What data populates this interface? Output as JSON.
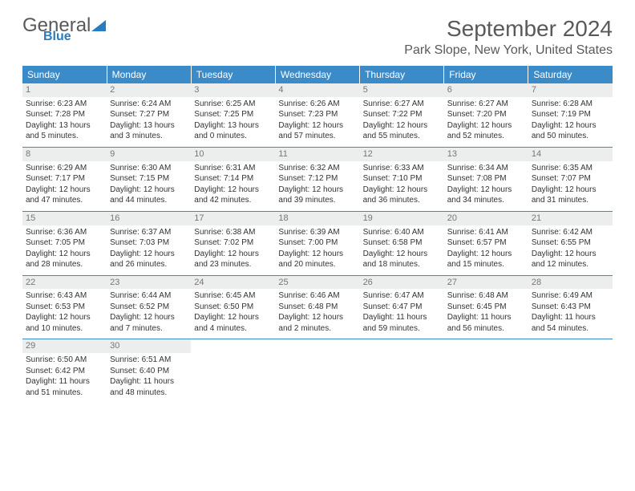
{
  "logo": {
    "text1": "General",
    "text2": "Blue"
  },
  "title": "September 2024",
  "location": "Park Slope, New York, United States",
  "colors": {
    "header_bg": "#3b8bc9",
    "header_text": "#ffffff",
    "logo_gray": "#58595b",
    "logo_blue": "#2b7bbf",
    "daynum_bg": "#eceded",
    "daynum_text": "#777777",
    "body_text": "#333333",
    "divider": "#3b8bc9"
  },
  "typography": {
    "title_fontsize": 28,
    "location_fontsize": 16,
    "header_fontsize": 12,
    "cell_fontsize": 10
  },
  "day_names": [
    "Sunday",
    "Monday",
    "Tuesday",
    "Wednesday",
    "Thursday",
    "Friday",
    "Saturday"
  ],
  "weeks": [
    [
      {
        "n": "1",
        "sr": "Sunrise: 6:23 AM",
        "ss": "Sunset: 7:28 PM",
        "d1": "Daylight: 13 hours",
        "d2": "and 5 minutes."
      },
      {
        "n": "2",
        "sr": "Sunrise: 6:24 AM",
        "ss": "Sunset: 7:27 PM",
        "d1": "Daylight: 13 hours",
        "d2": "and 3 minutes."
      },
      {
        "n": "3",
        "sr": "Sunrise: 6:25 AM",
        "ss": "Sunset: 7:25 PM",
        "d1": "Daylight: 13 hours",
        "d2": "and 0 minutes."
      },
      {
        "n": "4",
        "sr": "Sunrise: 6:26 AM",
        "ss": "Sunset: 7:23 PM",
        "d1": "Daylight: 12 hours",
        "d2": "and 57 minutes."
      },
      {
        "n": "5",
        "sr": "Sunrise: 6:27 AM",
        "ss": "Sunset: 7:22 PM",
        "d1": "Daylight: 12 hours",
        "d2": "and 55 minutes."
      },
      {
        "n": "6",
        "sr": "Sunrise: 6:27 AM",
        "ss": "Sunset: 7:20 PM",
        "d1": "Daylight: 12 hours",
        "d2": "and 52 minutes."
      },
      {
        "n": "7",
        "sr": "Sunrise: 6:28 AM",
        "ss": "Sunset: 7:19 PM",
        "d1": "Daylight: 12 hours",
        "d2": "and 50 minutes."
      }
    ],
    [
      {
        "n": "8",
        "sr": "Sunrise: 6:29 AM",
        "ss": "Sunset: 7:17 PM",
        "d1": "Daylight: 12 hours",
        "d2": "and 47 minutes."
      },
      {
        "n": "9",
        "sr": "Sunrise: 6:30 AM",
        "ss": "Sunset: 7:15 PM",
        "d1": "Daylight: 12 hours",
        "d2": "and 44 minutes."
      },
      {
        "n": "10",
        "sr": "Sunrise: 6:31 AM",
        "ss": "Sunset: 7:14 PM",
        "d1": "Daylight: 12 hours",
        "d2": "and 42 minutes."
      },
      {
        "n": "11",
        "sr": "Sunrise: 6:32 AM",
        "ss": "Sunset: 7:12 PM",
        "d1": "Daylight: 12 hours",
        "d2": "and 39 minutes."
      },
      {
        "n": "12",
        "sr": "Sunrise: 6:33 AM",
        "ss": "Sunset: 7:10 PM",
        "d1": "Daylight: 12 hours",
        "d2": "and 36 minutes."
      },
      {
        "n": "13",
        "sr": "Sunrise: 6:34 AM",
        "ss": "Sunset: 7:08 PM",
        "d1": "Daylight: 12 hours",
        "d2": "and 34 minutes."
      },
      {
        "n": "14",
        "sr": "Sunrise: 6:35 AM",
        "ss": "Sunset: 7:07 PM",
        "d1": "Daylight: 12 hours",
        "d2": "and 31 minutes."
      }
    ],
    [
      {
        "n": "15",
        "sr": "Sunrise: 6:36 AM",
        "ss": "Sunset: 7:05 PM",
        "d1": "Daylight: 12 hours",
        "d2": "and 28 minutes."
      },
      {
        "n": "16",
        "sr": "Sunrise: 6:37 AM",
        "ss": "Sunset: 7:03 PM",
        "d1": "Daylight: 12 hours",
        "d2": "and 26 minutes."
      },
      {
        "n": "17",
        "sr": "Sunrise: 6:38 AM",
        "ss": "Sunset: 7:02 PM",
        "d1": "Daylight: 12 hours",
        "d2": "and 23 minutes."
      },
      {
        "n": "18",
        "sr": "Sunrise: 6:39 AM",
        "ss": "Sunset: 7:00 PM",
        "d1": "Daylight: 12 hours",
        "d2": "and 20 minutes."
      },
      {
        "n": "19",
        "sr": "Sunrise: 6:40 AM",
        "ss": "Sunset: 6:58 PM",
        "d1": "Daylight: 12 hours",
        "d2": "and 18 minutes."
      },
      {
        "n": "20",
        "sr": "Sunrise: 6:41 AM",
        "ss": "Sunset: 6:57 PM",
        "d1": "Daylight: 12 hours",
        "d2": "and 15 minutes."
      },
      {
        "n": "21",
        "sr": "Sunrise: 6:42 AM",
        "ss": "Sunset: 6:55 PM",
        "d1": "Daylight: 12 hours",
        "d2": "and 12 minutes."
      }
    ],
    [
      {
        "n": "22",
        "sr": "Sunrise: 6:43 AM",
        "ss": "Sunset: 6:53 PM",
        "d1": "Daylight: 12 hours",
        "d2": "and 10 minutes."
      },
      {
        "n": "23",
        "sr": "Sunrise: 6:44 AM",
        "ss": "Sunset: 6:52 PM",
        "d1": "Daylight: 12 hours",
        "d2": "and 7 minutes."
      },
      {
        "n": "24",
        "sr": "Sunrise: 6:45 AM",
        "ss": "Sunset: 6:50 PM",
        "d1": "Daylight: 12 hours",
        "d2": "and 4 minutes."
      },
      {
        "n": "25",
        "sr": "Sunrise: 6:46 AM",
        "ss": "Sunset: 6:48 PM",
        "d1": "Daylight: 12 hours",
        "d2": "and 2 minutes."
      },
      {
        "n": "26",
        "sr": "Sunrise: 6:47 AM",
        "ss": "Sunset: 6:47 PM",
        "d1": "Daylight: 11 hours",
        "d2": "and 59 minutes."
      },
      {
        "n": "27",
        "sr": "Sunrise: 6:48 AM",
        "ss": "Sunset: 6:45 PM",
        "d1": "Daylight: 11 hours",
        "d2": "and 56 minutes."
      },
      {
        "n": "28",
        "sr": "Sunrise: 6:49 AM",
        "ss": "Sunset: 6:43 PM",
        "d1": "Daylight: 11 hours",
        "d2": "and 54 minutes."
      }
    ],
    [
      {
        "n": "29",
        "sr": "Sunrise: 6:50 AM",
        "ss": "Sunset: 6:42 PM",
        "d1": "Daylight: 11 hours",
        "d2": "and 51 minutes."
      },
      {
        "n": "30",
        "sr": "Sunrise: 6:51 AM",
        "ss": "Sunset: 6:40 PM",
        "d1": "Daylight: 11 hours",
        "d2": "and 48 minutes."
      },
      {
        "empty": true
      },
      {
        "empty": true
      },
      {
        "empty": true
      },
      {
        "empty": true
      },
      {
        "empty": true
      }
    ]
  ]
}
